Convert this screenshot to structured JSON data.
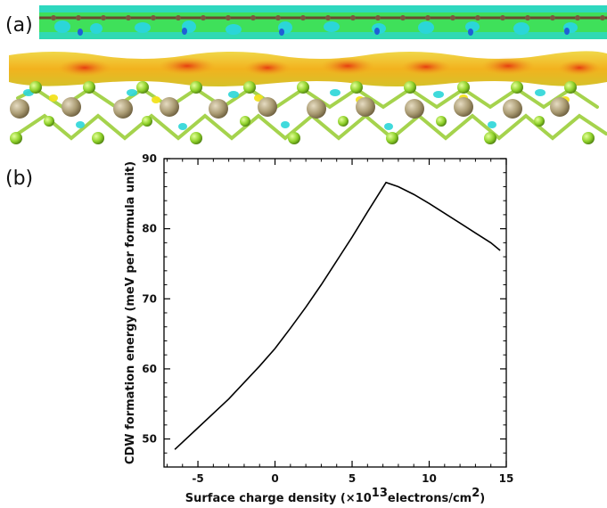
{
  "panel_labels": {
    "a": "(a)",
    "b": "(b)"
  },
  "chart_data": {
    "type": "line",
    "xlabel_parts": [
      "Surface charge density (×10",
      "13",
      "electrons/cm",
      "2",
      ")"
    ],
    "ylabel": "CDW formation energy (meV per formula unit)",
    "xlim": [
      -7.2,
      15
    ],
    "ylim": [
      46,
      90
    ],
    "xticks": [
      -5,
      0,
      5,
      10,
      15
    ],
    "yticks": [
      50,
      60,
      70,
      80,
      90
    ],
    "grid": false,
    "series": [
      {
        "color": "#000000",
        "x": [
          -6.5,
          -5,
          -3,
          -1,
          0,
          1,
          2,
          3,
          4,
          5,
          6,
          7.2,
          8,
          9,
          10,
          11,
          12,
          13,
          14,
          14.6
        ],
        "y": [
          48.5,
          51.6,
          55.7,
          60.4,
          62.9,
          65.8,
          68.8,
          72.0,
          75.4,
          78.8,
          82.4,
          86.6,
          86.0,
          84.9,
          83.6,
          82.2,
          80.8,
          79.4,
          78.0,
          76.9
        ]
      }
    ]
  },
  "structure_colors": {
    "green_field": "#3fe05a",
    "cyan_blob": "#2bd6d8",
    "yellow_sheet": "#f2c81e",
    "red_core": "#e23a12",
    "atom_brown": "#8b6b4e",
    "atom_tan": "#a99a72",
    "atom_green": "#8fd12a"
  }
}
